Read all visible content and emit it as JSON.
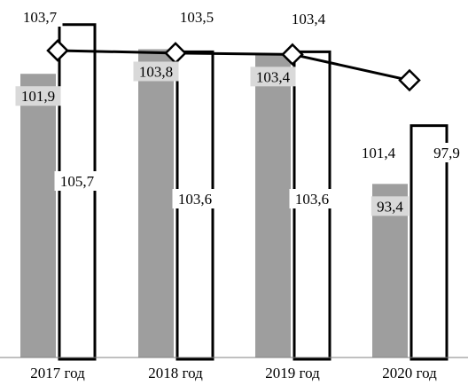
{
  "chart_data": {
    "type": "bar",
    "categories": [
      "2017 год",
      "2018 год",
      "2019 год",
      "2020 год"
    ],
    "series": [
      {
        "kind": "bar",
        "color": "#9e9e9e",
        "label_bg": "#d9d9d9",
        "values": [
          101.9,
          103.8,
          103.4,
          93.4
        ],
        "labels": [
          "101,9",
          "103,8",
          "103,4",
          "93,4"
        ]
      },
      {
        "kind": "bar",
        "color": "#ffffff",
        "stroke": "#000000",
        "label_bg": "#ffffff",
        "values": [
          105.7,
          103.6,
          103.6,
          97.9
        ],
        "labels": [
          "105,7",
          "103,6",
          "103,6",
          "97,9"
        ]
      },
      {
        "kind": "line",
        "color": "#000000",
        "marker": "diamond",
        "label_bg": "#ffffff",
        "values": [
          103.7,
          103.5,
          103.4,
          101.4
        ],
        "labels": [
          "103,7",
          "103,5",
          "103,4",
          "101,4"
        ]
      }
    ],
    "ylim": [
      80,
      107.6
    ],
    "grid": false,
    "title": "",
    "xlabel": "",
    "ylabel": ""
  }
}
